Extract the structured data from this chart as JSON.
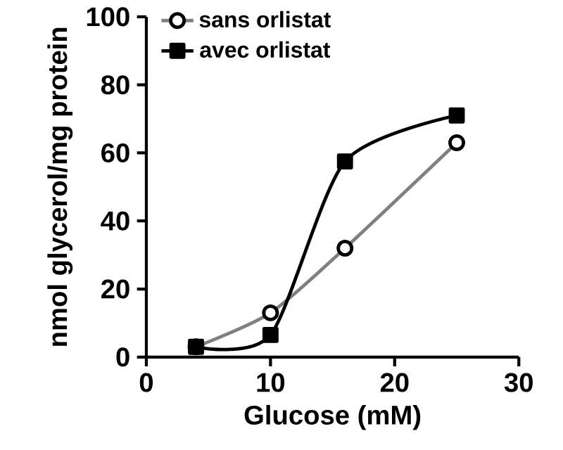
{
  "chart_data": {
    "type": "line",
    "xlabel": "Glucose (mM)",
    "ylabel": "nmol glycerol/mg protein",
    "series": [
      {
        "name": "sans orlistat",
        "color": "#808080",
        "marker": "circle",
        "x": [
          4,
          10,
          16,
          25
        ],
        "values": [
          3,
          13,
          32,
          63
        ]
      },
      {
        "name": "avec orlistat",
        "color": "#000000",
        "marker": "square",
        "x": [
          4,
          10,
          16,
          25
        ],
        "values": [
          3,
          6.5,
          57.5,
          71
        ]
      }
    ],
    "xlim": [
      0,
      30
    ],
    "ylim": [
      0,
      100
    ],
    "xticks": [
      0,
      10,
      20,
      30
    ],
    "yticks": [
      0,
      20,
      40,
      60,
      80,
      100
    ],
    "legend": "top left",
    "grid": false
  }
}
